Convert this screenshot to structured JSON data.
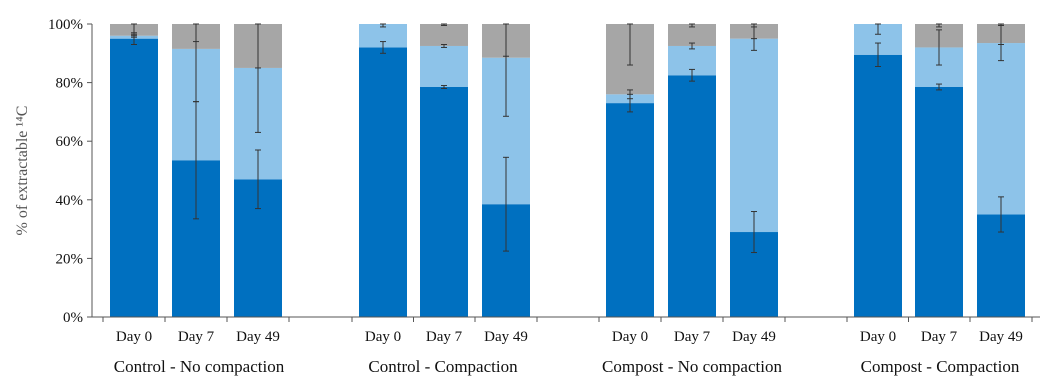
{
  "chart_data": {
    "type": "bar",
    "stacked": true,
    "ylabel": "% of extractable ¹⁴C",
    "ylim": [
      0,
      100
    ],
    "y_ticks": [
      "0%",
      "20%",
      "40%",
      "60%",
      "80%",
      "100%"
    ],
    "grid": false,
    "categories": [
      "Day 0",
      "Day 7",
      "Day 49",
      "Day 0",
      "Day 7",
      "Day 49",
      "Day 0",
      "Day 7",
      "Day 49",
      "Day 0",
      "Day 7",
      "Day 49"
    ],
    "groups": [
      "Control - No compaction",
      "Control - Compaction",
      "Compost - No compaction",
      "Compost - Compaction"
    ],
    "series": [
      {
        "color": "#0070c0",
        "values": [
          95,
          53.5,
          47,
          92,
          78.5,
          38.5,
          73,
          82.5,
          29,
          89.5,
          78.5,
          35
        ],
        "err": [
          2,
          20,
          10,
          2,
          0.5,
          16,
          3,
          2,
          7,
          4,
          1,
          6
        ]
      },
      {
        "color": "#8dc3e9",
        "values": [
          1,
          38,
          38,
          8,
          14,
          50,
          3,
          10,
          66,
          10.5,
          13.5,
          58.5
        ],
        "err": [
          0.5,
          18,
          22,
          1,
          0.5,
          20,
          1.5,
          1,
          4,
          3.5,
          6,
          6
        ]
      },
      {
        "color": "#a6a6a6",
        "values": [
          4,
          8.5,
          15,
          0,
          7.5,
          11.5,
          24,
          7.5,
          5,
          0,
          8,
          6.5
        ],
        "err": [
          4,
          6,
          15,
          0,
          0.5,
          11,
          14,
          1,
          5,
          0,
          1,
          7
        ]
      }
    ]
  }
}
